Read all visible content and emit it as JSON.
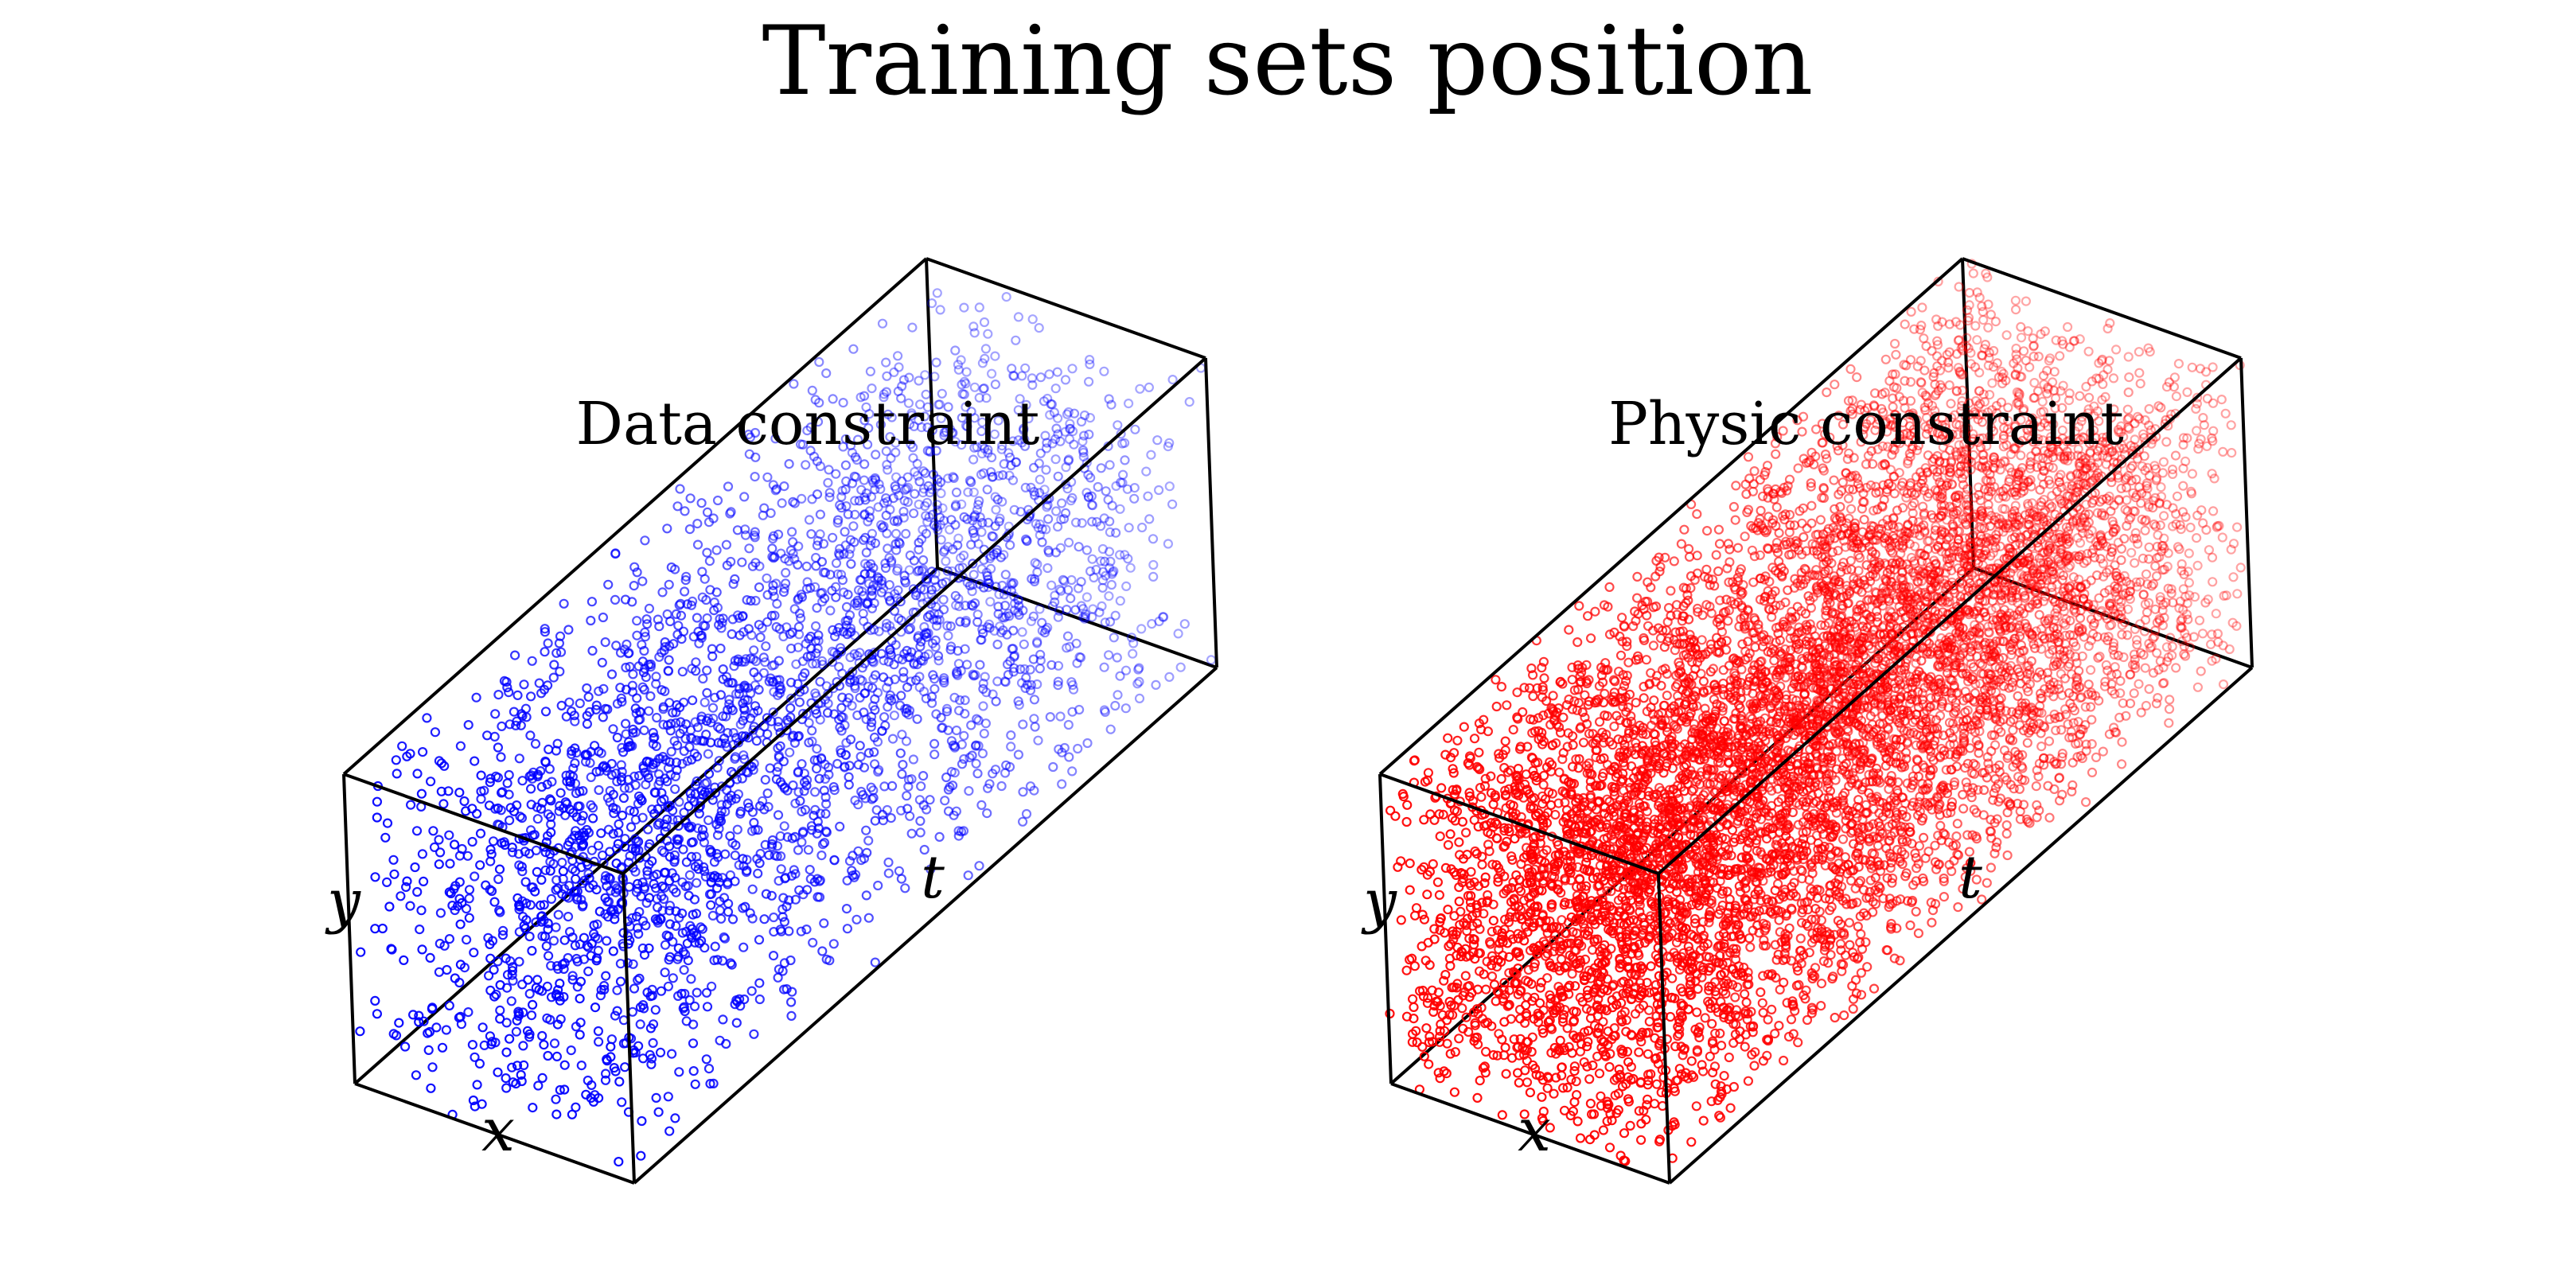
{
  "figure": {
    "title": "Training sets position"
  },
  "chart_data": [
    {
      "type": "scatter",
      "projection": "3d",
      "title": "Data constraint",
      "xlabel": "x",
      "ylabel": "y",
      "zlabel": "t",
      "xlim": [
        0,
        1
      ],
      "ylim": [
        0,
        1
      ],
      "zlim": [
        0,
        1
      ],
      "grid": false,
      "color": "#0000ff",
      "marker": "hollow circle",
      "approx_point_count": 3000,
      "distribution": "roughly uniform in the box"
    },
    {
      "type": "scatter",
      "projection": "3d",
      "title": "Physic constraint",
      "xlabel": "x",
      "ylabel": "y",
      "zlabel": "t",
      "xlim": [
        0,
        1
      ],
      "ylim": [
        0,
        1
      ],
      "zlim": [
        0,
        1
      ],
      "grid": false,
      "color": "#ff0000",
      "marker": "hollow circle",
      "approx_point_count": 8000,
      "distribution": "roughly uniform in the box"
    }
  ]
}
